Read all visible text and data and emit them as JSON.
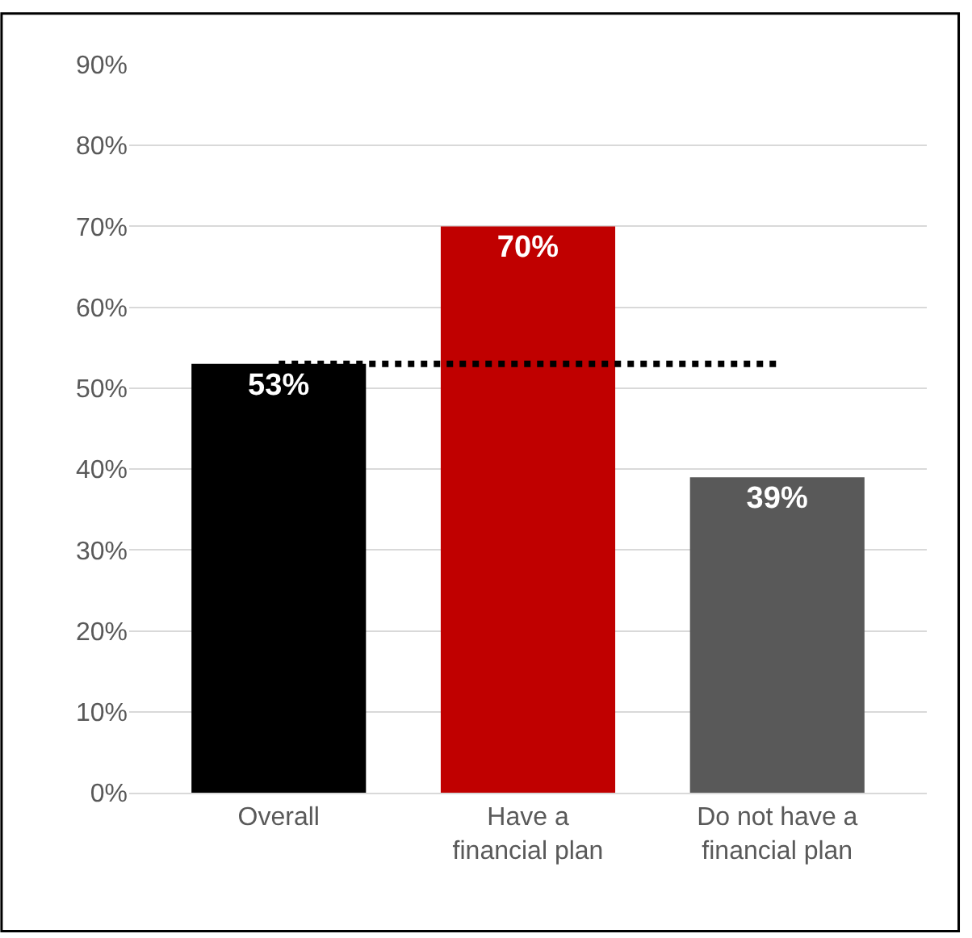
{
  "chart_data": {
    "type": "bar",
    "categories": [
      "Overall",
      "Have a\nfinancial plan",
      "Do not have a\nfinancial plan"
    ],
    "values": [
      53,
      70,
      39
    ],
    "colors": [
      "#000000",
      "#c00000",
      "#595959"
    ],
    "value_labels": [
      "53%",
      "70%",
      "39%"
    ],
    "ylim": [
      0,
      90
    ],
    "yticks": [
      {
        "value": 0,
        "label": "0%"
      },
      {
        "value": 10,
        "label": "10%"
      },
      {
        "value": 20,
        "label": "20%"
      },
      {
        "value": 30,
        "label": "30%"
      },
      {
        "value": 40,
        "label": "40%"
      },
      {
        "value": 50,
        "label": "50%"
      },
      {
        "value": 60,
        "label": "60%"
      },
      {
        "value": 70,
        "label": "70%"
      },
      {
        "value": 80,
        "label": "80%"
      },
      {
        "value": 90,
        "label": "90%"
      }
    ],
    "ref_lines": [
      {
        "axis": "y",
        "value": 53,
        "color": "#000000",
        "line_style": "dotted"
      }
    ],
    "grid": "y"
  }
}
